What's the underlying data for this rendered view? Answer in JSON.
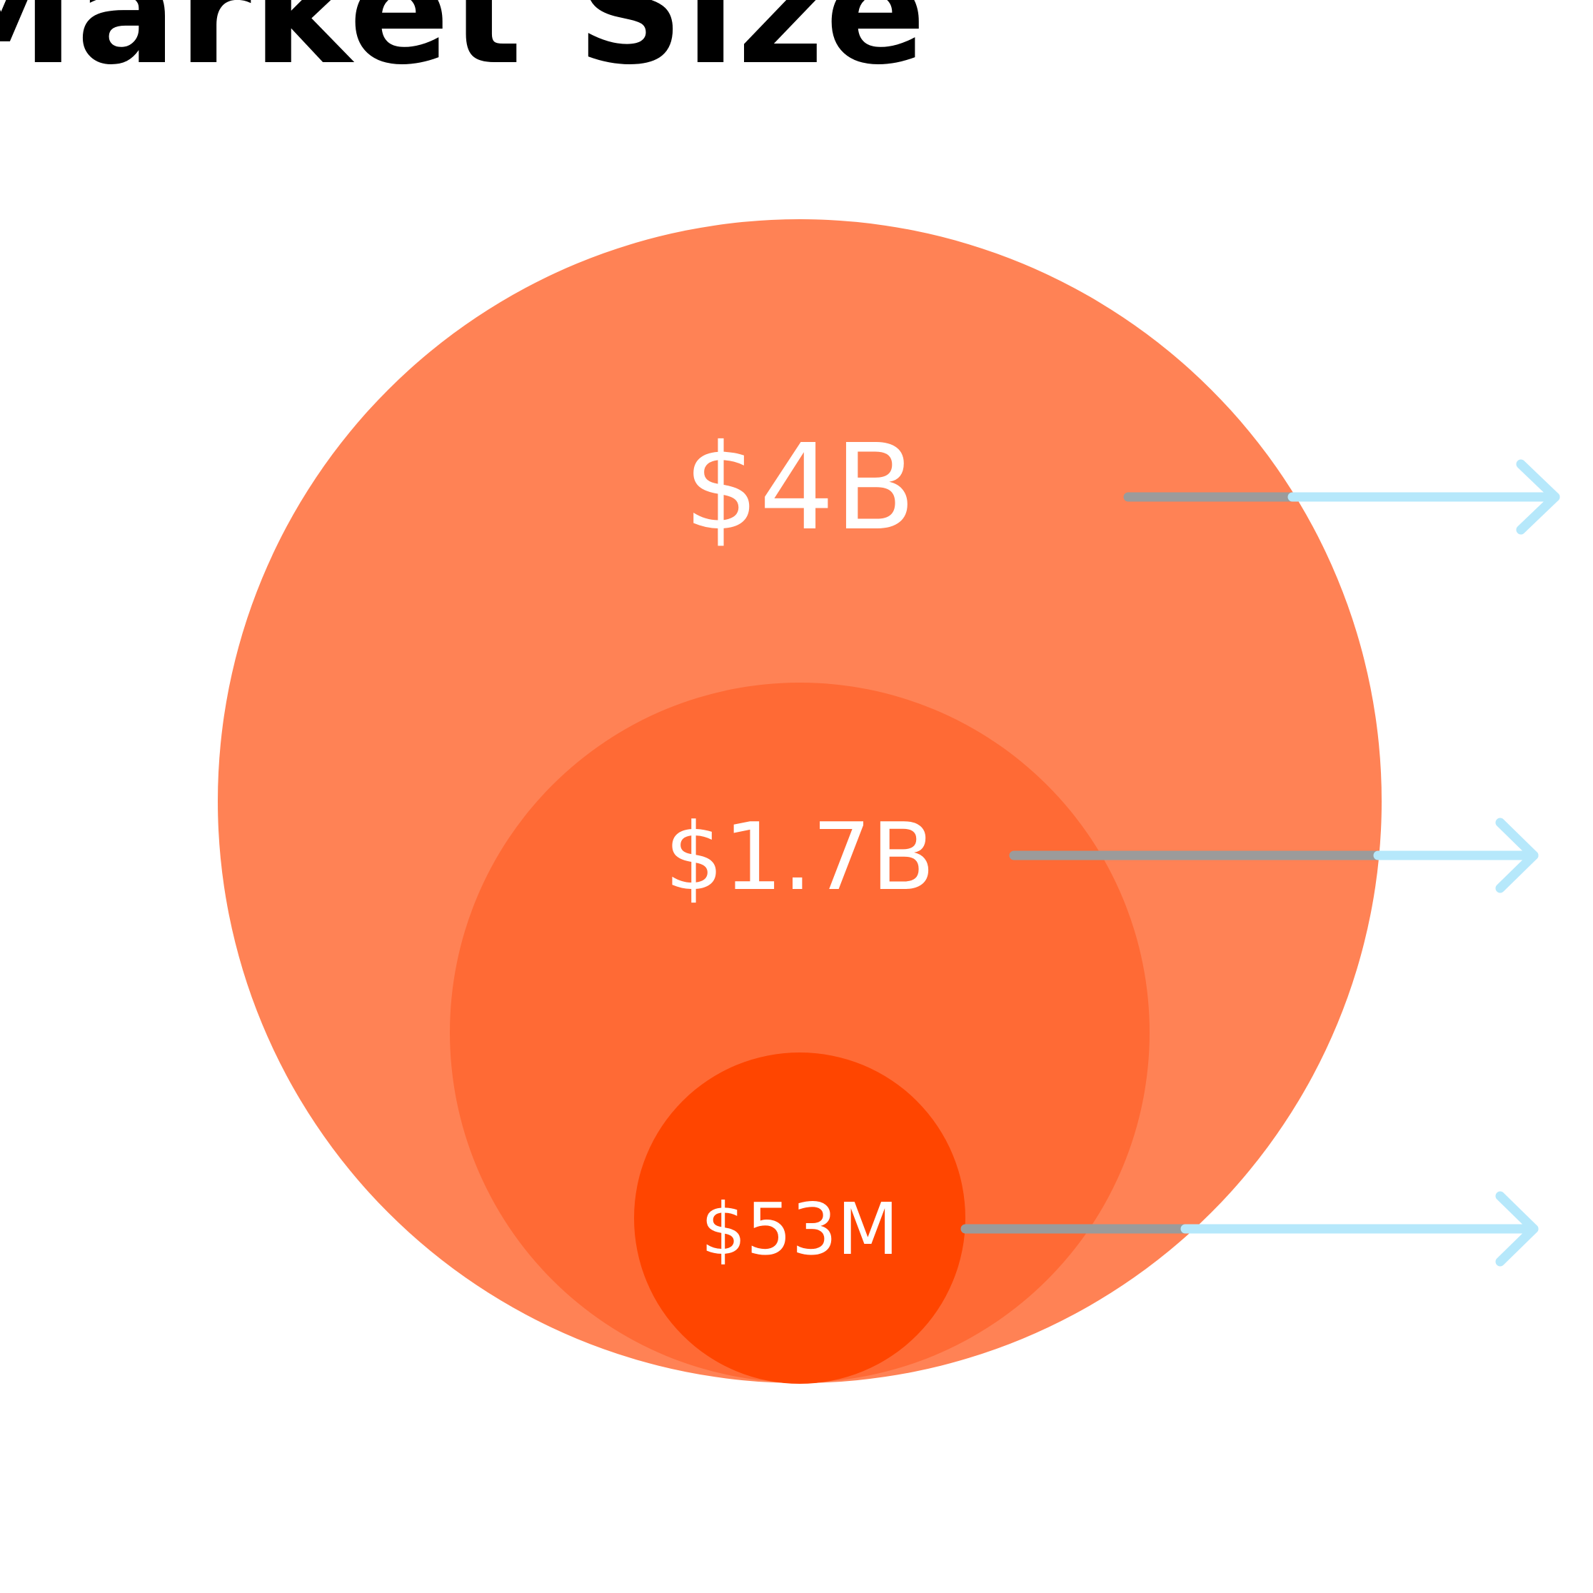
{
  "title": "Market Size",
  "markets": [
    {
      "value": "$4B",
      "color": "#ff8255"
    },
    {
      "value": "$1.7B",
      "color": "#ff6a35"
    },
    {
      "value": "$53M",
      "color": "#ff4500"
    }
  ],
  "colors": {
    "connector_gray": "#9b9b9b",
    "arrow_blue": "#b6e8fb",
    "label_text": "#ffffff"
  },
  "icons": [
    "arrow-right-icon",
    "arrow-right-icon",
    "arrow-right-icon"
  ]
}
